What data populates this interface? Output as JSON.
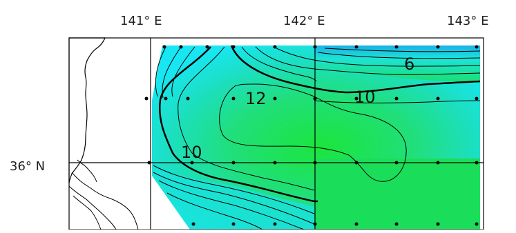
{
  "axes": {
    "lon_labels": [
      "141° E",
      "142° E",
      "143° E"
    ],
    "lat_labels": [
      "36° N"
    ]
  },
  "contour_labels": [
    "6",
    "10",
    "12",
    "10"
  ],
  "colors": {
    "frame": "#000000",
    "land_outline": "#000000",
    "low_value": "#18e6f2",
    "high_value": "#1ad95a"
  }
}
